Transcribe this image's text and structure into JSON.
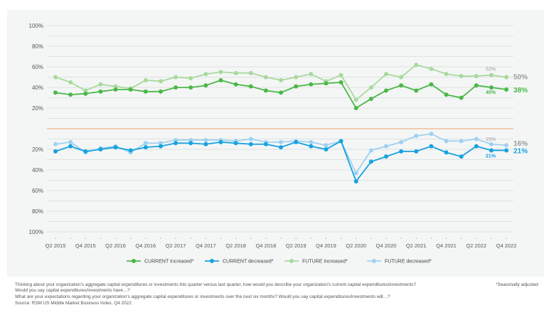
{
  "chart_data": {
    "type": "line",
    "categories": [
      "Q2 2015",
      "Q3 2015",
      "Q4 2015",
      "Q1 2016",
      "Q2 2016",
      "Q3 2016",
      "Q4 2016",
      "Q1 2017",
      "Q2 2017",
      "Q3 2017",
      "Q4 2017",
      "Q1 2018",
      "Q2 2018",
      "Q3 2018",
      "Q4 2018",
      "Q1 2019",
      "Q2 2019",
      "Q3 2019",
      "Q4 2019",
      "Q1 2020",
      "Q2 2020",
      "Q3 2020",
      "Q4 2020",
      "Q1 2021",
      "Q2 2021",
      "Q3 2021",
      "Q4 2021",
      "Q1 2022",
      "Q2 2022",
      "Q3 2022",
      "Q4 2022"
    ],
    "tick_labels": [
      "Q2 2015",
      "Q4 2015",
      "Q2 2016",
      "Q4 2016",
      "Q2 2017",
      "Q4 2017",
      "Q2 2018",
      "Q4 2018",
      "Q2 2019",
      "Q4 2019",
      "Q2 2020",
      "Q4 2020",
      "Q2 2021",
      "Q4 2021",
      "Q2 2022",
      "Q4 2022"
    ],
    "upper_y_ticks": [
      "100%",
      "80%",
      "60%",
      "40%",
      "20%"
    ],
    "lower_y_ticks": [
      "20%",
      "40%",
      "60%",
      "80%",
      "100%"
    ],
    "ylim_upper": [
      0,
      100
    ],
    "ylim_lower": [
      0,
      100
    ],
    "grid": true,
    "legend_position": "bottom",
    "series": [
      {
        "name": "FUTURE Increased*",
        "panel": "upper",
        "color": "#a9d99c",
        "values": [
          50,
          45,
          37,
          43,
          41,
          39,
          47,
          46,
          50,
          49,
          53,
          55,
          54,
          54,
          50,
          47,
          50,
          53,
          46,
          52,
          28,
          40,
          53,
          50,
          62,
          58,
          53,
          51,
          51,
          52,
          50
        ]
      },
      {
        "name": "CURRENT Increased*",
        "panel": "upper",
        "color": "#4bb848",
        "values": [
          35,
          33,
          34,
          36,
          38,
          38,
          36,
          36,
          40,
          40,
          42,
          47,
          43,
          41,
          37,
          35,
          41,
          43,
          44,
          45,
          20,
          29,
          37,
          42,
          37,
          43,
          33,
          30,
          42,
          40,
          38
        ]
      },
      {
        "name": "FUTURE decreased*",
        "panel": "lower",
        "color": "#9fd1f1",
        "values": [
          15,
          13,
          23,
          19,
          17,
          23,
          14,
          14,
          11,
          11,
          11,
          11,
          12,
          10,
          13,
          13,
          12,
          13,
          16,
          12,
          43,
          21,
          17,
          13,
          7,
          5,
          12,
          12,
          10,
          15,
          16
        ]
      },
      {
        "name": "CURRENT decreased*",
        "panel": "lower",
        "color": "#17a2df",
        "values": [
          22,
          17,
          22,
          20,
          18,
          21,
          18,
          17,
          14,
          14,
          15,
          13,
          14,
          15,
          15,
          18,
          13,
          17,
          20,
          12,
          51,
          32,
          27,
          22,
          22,
          17,
          23,
          27,
          17,
          21,
          21
        ]
      }
    ],
    "legend_order": [
      1,
      3,
      0,
      2
    ],
    "annotations": {
      "future_inc_end": "50%",
      "current_inc_end": "38%",
      "future_inc_prev": "52%",
      "current_inc_prev": "40%",
      "future_dec_end": "16%",
      "current_dec_end": "21%",
      "future_dec_prev": "15%",
      "current_dec_prev": "21%"
    },
    "zero_line_color": "#e8a06e"
  },
  "footnotes": {
    "q1": "Thinking about your organization's aggregate capital expenditures or investments this quarter versus last quarter, how would you describe your organization's current capital expenditures/investments?",
    "q1b": "Would you say capital expenditures/investments have…?",
    "q2": "What are your expectations regarding your organization's aggregate capital expenditures or investments over the next six months? Would you say capital expenditures/investments will…?",
    "source": "Source: RSM US Middle Market Business Index, Q4 2022",
    "seasonal": "*Seasonally adjusted"
  }
}
